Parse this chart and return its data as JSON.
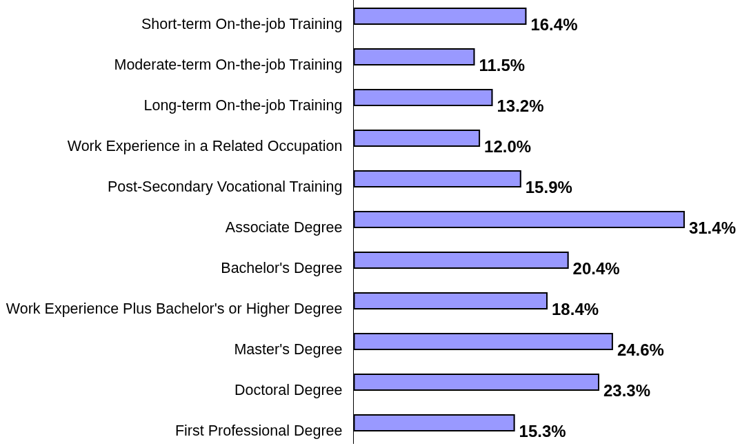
{
  "chart_data": {
    "type": "bar",
    "orientation": "horizontal",
    "categories": [
      "Short-term On-the-job Training",
      "Moderate-term On-the-job Training",
      "Long-term On-the-job Training",
      "Work Experience in a Related Occupation",
      "Post-Secondary Vocational Training",
      "Associate Degree",
      "Bachelor's Degree",
      "Work Experience Plus Bachelor's or Higher Degree",
      "Master's Degree",
      "Doctoral Degree",
      "First Professional Degree"
    ],
    "values": [
      16.4,
      11.5,
      13.2,
      12.0,
      15.9,
      31.4,
      20.4,
      18.4,
      24.6,
      23.3,
      15.3
    ],
    "value_labels": [
      "16.4%",
      "11.5%",
      "13.2%",
      "12.0%",
      "15.9%",
      "31.4%",
      "20.4%",
      "18.4%",
      "24.6%",
      "23.3%",
      "15.3%"
    ],
    "color": "#9999ff",
    "tick_labels": "y"
  }
}
